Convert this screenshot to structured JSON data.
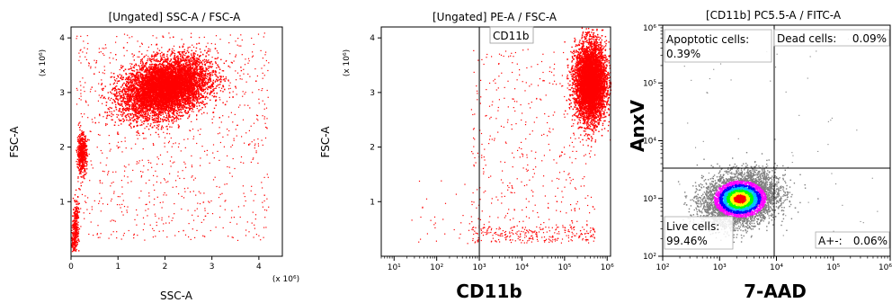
{
  "chart_data": [
    {
      "type": "scatter",
      "title": "[Ungated] SSC-A / FSC-A",
      "xlabel": "SSC-A",
      "ylabel": "FSC-A",
      "x_multiplier": "(x 10⁶)",
      "y_multiplier": "(x 10⁶)",
      "xlim": [
        0,
        4.5
      ],
      "ylim": [
        0,
        4.2
      ],
      "xticks": [
        "0",
        "1",
        "2",
        "3",
        "4"
      ],
      "yticks": [
        "1",
        "2",
        "3",
        "4"
      ],
      "point_color": "#ff0000",
      "populations": [
        {
          "center": [
            2.0,
            3.1
          ],
          "spread": [
            0.45,
            0.25
          ]
        },
        {
          "center": [
            0.22,
            1.9
          ],
          "spread": [
            0.05,
            0.18
          ]
        },
        {
          "center": [
            0.08,
            0.5
          ],
          "spread": [
            0.04,
            0.25
          ]
        }
      ]
    },
    {
      "type": "scatter",
      "title": "[Ungated] PE-A / FSC-A",
      "xlabel": "CD11b",
      "ylabel": "FSC-A",
      "x_scale": "log",
      "y_multiplier": "(x 10⁶)",
      "xlim": [
        5,
        1200000
      ],
      "ylim": [
        0,
        4.2
      ],
      "xticks": [
        "10¹",
        "10²",
        "10³",
        "10⁴",
        "10⁵",
        "10⁶"
      ],
      "yticks": [
        "1",
        "2",
        "3",
        "4"
      ],
      "gate": {
        "name": "CD11b",
        "x": 1000
      },
      "point_color": "#ff0000",
      "populations": [
        {
          "center_log10_x": 5.6,
          "center_y": 3.2,
          "spread": [
            0.18,
            0.35
          ]
        }
      ]
    },
    {
      "type": "scatter",
      "title": "[CD11b] PC5.5-A / FITC-A",
      "xlabel": "7-AAD",
      "ylabel": "AnxV",
      "x_scale": "log",
      "y_scale": "log",
      "xlim": [
        100,
        1000000
      ],
      "ylim": [
        100,
        1000000
      ],
      "xticks": [
        "10²",
        "10³",
        "10⁴",
        "10⁵",
        "10⁶"
      ],
      "yticks": [
        "10²",
        "10³",
        "10⁴",
        "10⁵",
        "10⁶"
      ],
      "quadrant_gate": {
        "x": 8000,
        "y": 7500
      },
      "quadrants": [
        {
          "position": "top-left",
          "name": "Apoptotic cells:",
          "value": "0.39%"
        },
        {
          "position": "top-right",
          "name": "Dead cells:",
          "value": "0.09%"
        },
        {
          "position": "bottom-left",
          "name": "Live cells:",
          "value": "99.46%"
        },
        {
          "position": "bottom-right",
          "name": "A+-:",
          "value": "0.06%"
        }
      ],
      "density_colors": [
        "#808080",
        "#ff00ff",
        "#0000ff",
        "#00c0ff",
        "#00ff00",
        "#ffff00",
        "#ff0000"
      ]
    }
  ]
}
